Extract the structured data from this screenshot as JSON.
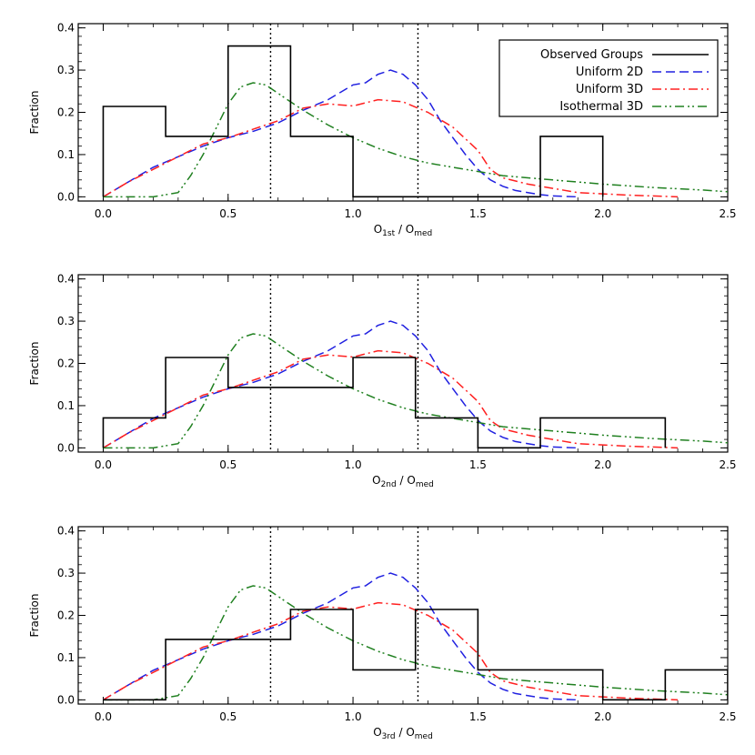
{
  "chart_data": [
    {
      "type": "line",
      "panel": "top",
      "ylabel": "Fraction",
      "xlabel": {
        "base": "O",
        "sub1": "1st",
        "mid": " / O",
        "sub2": "med"
      },
      "xlim": [
        -0.1,
        2.5
      ],
      "ylim": [
        -0.01,
        0.41
      ],
      "xticks": [
        0.0,
        0.5,
        1.0,
        1.5,
        2.0,
        2.5
      ],
      "xtick_labels": [
        "0.0",
        "0.5",
        "1.0",
        "1.5",
        "2.0",
        "2.5"
      ],
      "yticks": [
        0.0,
        0.1,
        0.2,
        0.3,
        0.4
      ],
      "ytick_labels": [
        "0.0",
        "0.1",
        "0.2",
        "0.3",
        "0.4"
      ],
      "vlines": [
        0.67,
        1.26
      ],
      "histogram": {
        "name": "Observed Groups",
        "bin_edges": [
          0.0,
          0.25,
          0.5,
          0.75,
          1.0,
          1.25,
          1.5,
          1.75,
          2.0
        ],
        "values": [
          0.214,
          0.143,
          0.357,
          0.143,
          0.0,
          0.0,
          0.0,
          0.143
        ]
      },
      "legend": {
        "position": "top-right",
        "entries": [
          {
            "label": "Observed Groups",
            "color": "#000000",
            "style": "solid"
          },
          {
            "label": "Uniform 2D",
            "color": "#2020e0",
            "style": "dashed"
          },
          {
            "label": "Uniform 3D",
            "color": "#ff2020",
            "style": "dashdot"
          },
          {
            "label": "Isothermal 3D",
            "color": "#208020",
            "style": "dashdotdot"
          }
        ]
      }
    },
    {
      "type": "line",
      "panel": "middle",
      "ylabel": "Fraction",
      "xlabel": {
        "base": "O",
        "sub1": "2nd",
        "mid": " / O",
        "sub2": "med"
      },
      "xlim": [
        -0.1,
        2.5
      ],
      "ylim": [
        -0.01,
        0.41
      ],
      "xticks": [
        0.0,
        0.5,
        1.0,
        1.5,
        2.0,
        2.5
      ],
      "xtick_labels": [
        "0.0",
        "0.5",
        "1.0",
        "1.5",
        "2.0",
        "2.5"
      ],
      "yticks": [
        0.0,
        0.1,
        0.2,
        0.3,
        0.4
      ],
      "ytick_labels": [
        "0.0",
        "0.1",
        "0.2",
        "0.3",
        "0.4"
      ],
      "vlines": [
        0.67,
        1.26
      ],
      "histogram": {
        "name": "Observed Groups",
        "bin_edges": [
          0.0,
          0.25,
          0.5,
          0.75,
          1.0,
          1.25,
          1.5,
          1.75,
          2.0,
          2.25
        ],
        "values": [
          0.071,
          0.214,
          0.143,
          0.143,
          0.214,
          0.071,
          0.0,
          0.071,
          0.071
        ]
      }
    },
    {
      "type": "line",
      "panel": "bottom",
      "ylabel": "Fraction",
      "xlabel": {
        "base": "O",
        "sub1": "3rd",
        "mid": " / O",
        "sub2": "med"
      },
      "xlim": [
        -0.1,
        2.5
      ],
      "ylim": [
        -0.01,
        0.41
      ],
      "xticks": [
        0.0,
        0.5,
        1.0,
        1.5,
        2.0,
        2.5
      ],
      "xtick_labels": [
        "0.0",
        "0.5",
        "1.0",
        "1.5",
        "2.0",
        "2.5"
      ],
      "yticks": [
        0.0,
        0.1,
        0.2,
        0.3,
        0.4
      ],
      "ytick_labels": [
        "0.0",
        "0.1",
        "0.2",
        "0.3",
        "0.4"
      ],
      "vlines": [
        0.67,
        1.26
      ],
      "histogram": {
        "name": "Observed Groups",
        "bin_edges": [
          0.0,
          0.25,
          0.5,
          0.75,
          1.0,
          1.25,
          1.5,
          1.75,
          2.0,
          2.25,
          2.5
        ],
        "values": [
          0.0,
          0.143,
          0.143,
          0.214,
          0.071,
          0.214,
          0.071,
          0.071,
          0.0,
          0.071
        ]
      }
    }
  ],
  "curves": [
    {
      "name": "Uniform 2D",
      "color": "#2020e0",
      "style": "dashed",
      "x": [
        0.0,
        0.1,
        0.2,
        0.3,
        0.4,
        0.5,
        0.6,
        0.7,
        0.8,
        0.9,
        1.0,
        1.05,
        1.1,
        1.15,
        1.2,
        1.25,
        1.3,
        1.35,
        1.4,
        1.45,
        1.5,
        1.55,
        1.6,
        1.65,
        1.7,
        1.75,
        1.8,
        1.85,
        1.9
      ],
      "y": [
        0.0,
        0.035,
        0.07,
        0.095,
        0.12,
        0.14,
        0.155,
        0.175,
        0.205,
        0.23,
        0.265,
        0.27,
        0.29,
        0.3,
        0.29,
        0.265,
        0.23,
        0.18,
        0.14,
        0.1,
        0.065,
        0.04,
        0.025,
        0.015,
        0.01,
        0.005,
        0.002,
        0.001,
        0.0
      ]
    },
    {
      "name": "Uniform 3D",
      "color": "#ff2020",
      "style": "dashdot",
      "x": [
        0.0,
        0.1,
        0.2,
        0.3,
        0.4,
        0.5,
        0.6,
        0.7,
        0.8,
        0.9,
        1.0,
        1.1,
        1.2,
        1.3,
        1.4,
        1.5,
        1.55,
        1.6,
        1.7,
        1.8,
        1.9,
        2.0,
        2.1,
        2.2,
        2.3
      ],
      "y": [
        0.0,
        0.035,
        0.065,
        0.095,
        0.125,
        0.14,
        0.16,
        0.18,
        0.21,
        0.22,
        0.215,
        0.23,
        0.225,
        0.2,
        0.165,
        0.11,
        0.065,
        0.045,
        0.03,
        0.02,
        0.01,
        0.007,
        0.004,
        0.002,
        0.0
      ]
    },
    {
      "name": "Isothermal 3D",
      "color": "#208020",
      "style": "dashdotdot",
      "x": [
        0.0,
        0.2,
        0.3,
        0.35,
        0.4,
        0.45,
        0.5,
        0.55,
        0.6,
        0.65,
        0.7,
        0.75,
        0.8,
        0.9,
        1.0,
        1.1,
        1.2,
        1.3,
        1.4,
        1.5,
        1.6,
        1.8,
        2.0,
        2.2,
        2.4,
        2.5
      ],
      "y": [
        0.0,
        0.0,
        0.01,
        0.05,
        0.1,
        0.16,
        0.22,
        0.26,
        0.27,
        0.265,
        0.245,
        0.225,
        0.205,
        0.17,
        0.14,
        0.115,
        0.095,
        0.08,
        0.07,
        0.06,
        0.05,
        0.04,
        0.03,
        0.022,
        0.016,
        0.012
      ]
    }
  ]
}
